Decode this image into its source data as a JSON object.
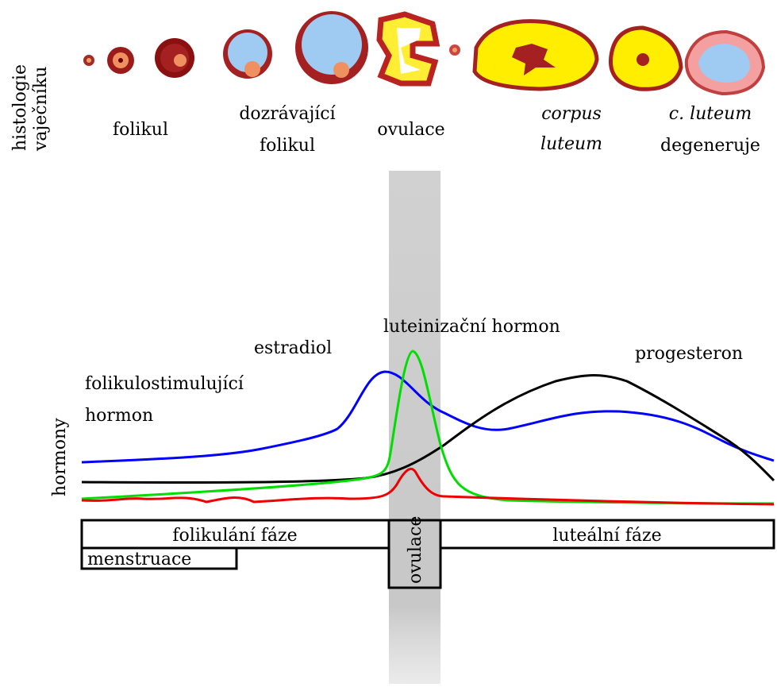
{
  "header": {
    "lines": [
      "histologie",
      "vaječníku"
    ]
  },
  "stages": [
    {
      "lines": [
        "folikul"
      ]
    },
    {
      "lines": [
        "dozrávající",
        "folikul"
      ]
    },
    {
      "lines": [
        "ovulace"
      ]
    },
    {
      "lines": [
        "corpus",
        "luteum"
      ]
    },
    {
      "lines": [
        "c. luteum",
        "degeneruje"
      ]
    }
  ],
  "axis_label": "hormony",
  "hormones": {
    "fsh": [
      "folikulostimulující",
      "hormon"
    ],
    "estradiol": "estradiol",
    "lh": "luteinizační hormon",
    "progesteron": "progesteron"
  },
  "phases": {
    "follicular": "folikulání fáze",
    "luteal": "luteální fáze",
    "menstruation": "menstruace",
    "ovulation": "ovulace"
  }
}
